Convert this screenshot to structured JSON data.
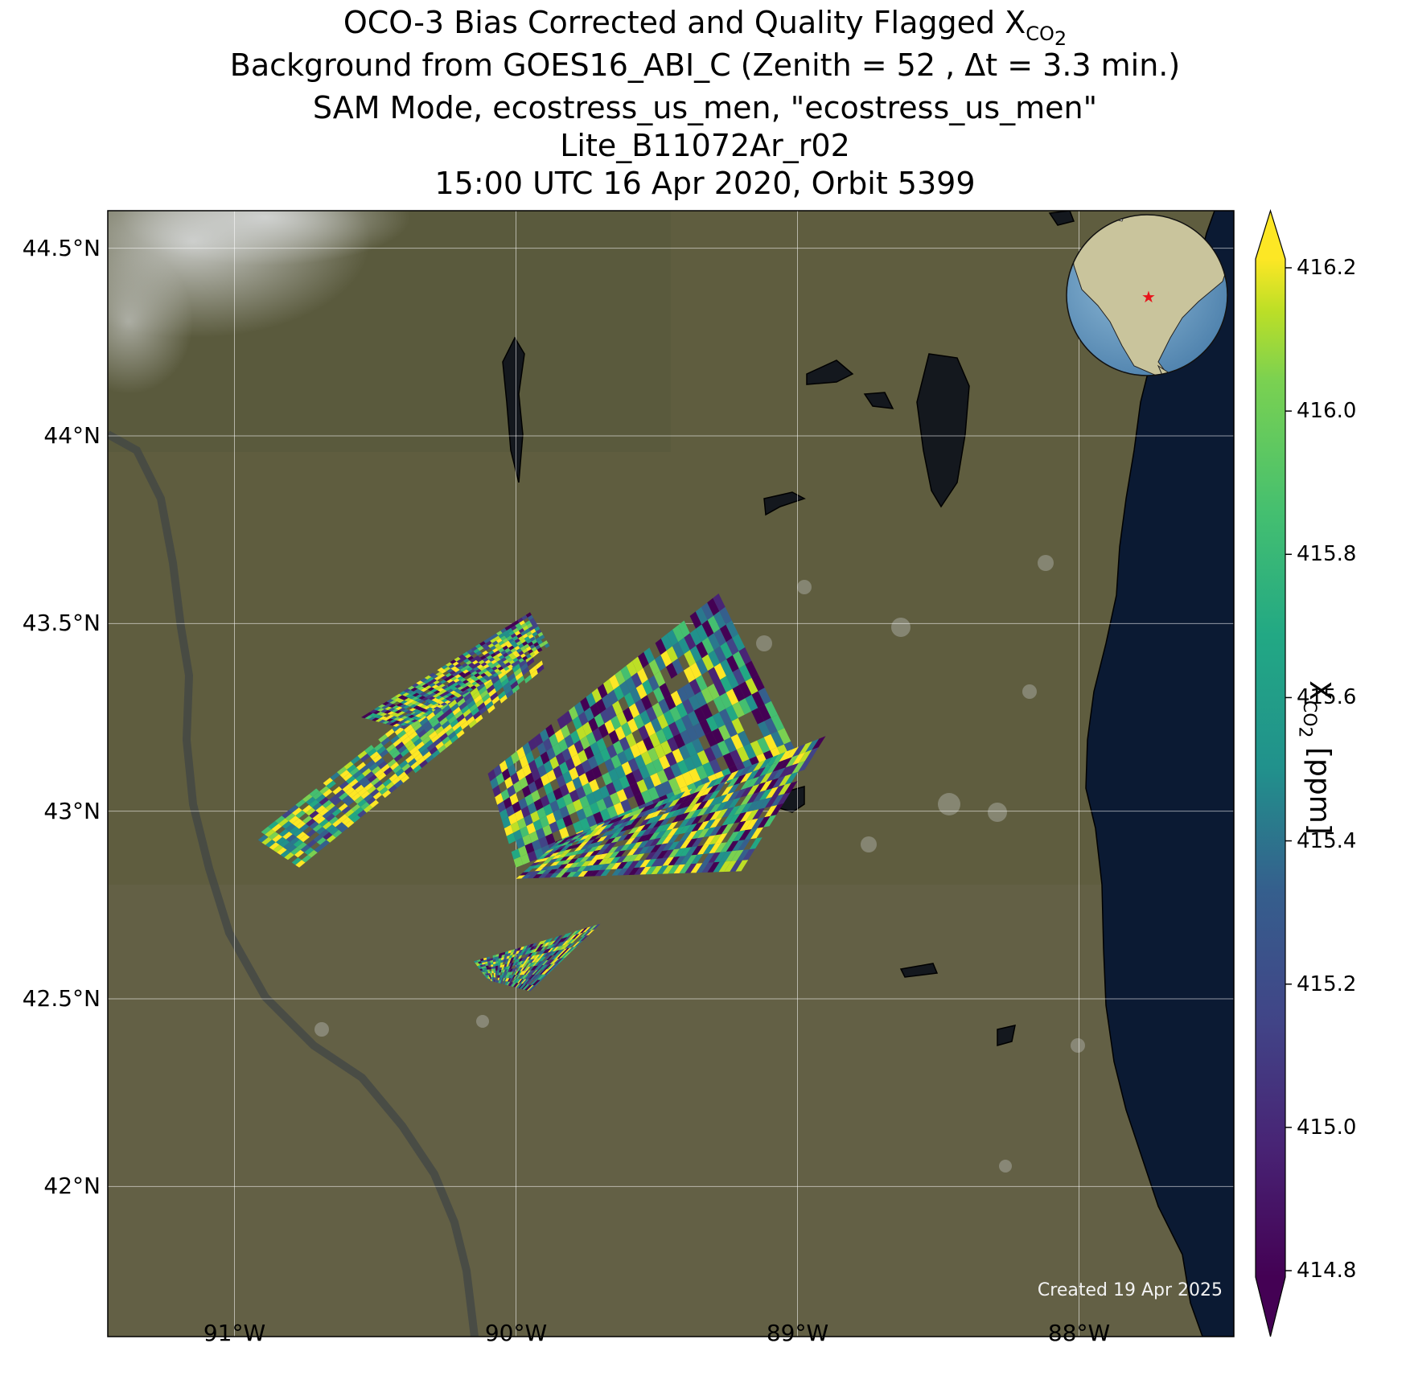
{
  "title": {
    "line1_text": "OCO-3 Bias Corrected and Quality Flagged X",
    "line1_sub": "CO",
    "line1_sub2": "2",
    "line2": "Background from GOES16_ABI_C (Zenith = 52 , Δt =  3.3 min.)",
    "line3": "SAM Mode, ecostress_us_men, \"ecostress_us_men\"",
    "line4": "Lite_B11072Ar_r02",
    "line5": "15:00 UTC 16 Apr 2020, Orbit 5399"
  },
  "map": {
    "lon_range": [
      -91.45,
      -87.45
    ],
    "lat_range": [
      41.6,
      44.6
    ],
    "lat_ticks": [
      {
        "value": 44.5,
        "label": "44.5°N"
      },
      {
        "value": 44.0,
        "label": "44°N"
      },
      {
        "value": 43.5,
        "label": "43.5°N"
      },
      {
        "value": 43.0,
        "label": "43°N"
      },
      {
        "value": 42.5,
        "label": "42.5°N"
      },
      {
        "value": 42.0,
        "label": "42°N"
      }
    ],
    "lon_ticks": [
      {
        "value": -91.0,
        "label": "91°W"
      },
      {
        "value": -90.0,
        "label": "90°W"
      },
      {
        "value": -89.0,
        "label": "89°W"
      },
      {
        "value": -88.0,
        "label": "88°W"
      }
    ],
    "grid": true,
    "background": "satellite imagery",
    "land_color": "#5f5d3f",
    "water_color": "#0b1a33",
    "created_label": "Created 19 Apr 2025",
    "inset_globe": {
      "placement": "top-right",
      "marker": "red star",
      "marker_color": "#e8141b"
    }
  },
  "chart_data": {
    "type": "heatmap",
    "colorbar": {
      "label_main": "X",
      "label_sub": "CO",
      "label_sub2": "2",
      "label_unit": " [ppm]",
      "min": 414.8,
      "max": 416.2,
      "extend": "both",
      "colormap": "viridis",
      "ticks": [
        "416.2",
        "416.0",
        "415.8",
        "415.6",
        "415.4",
        "415.2",
        "415.0",
        "414.8"
      ]
    },
    "swaths": [
      {
        "corners": [
          [
            -90.93,
            42.93
          ],
          [
            -89.95,
            43.51
          ],
          [
            -89.9,
            43.38
          ],
          [
            -90.77,
            42.85
          ]
        ]
      },
      {
        "corners": [
          [
            -90.55,
            43.25
          ],
          [
            -89.95,
            43.53
          ],
          [
            -89.88,
            43.44
          ],
          [
            -90.4,
            43.22
          ]
        ]
      },
      {
        "corners": [
          [
            -90.1,
            43.1
          ],
          [
            -89.28,
            43.58
          ],
          [
            -89.0,
            43.15
          ],
          [
            -90.0,
            42.85
          ]
        ]
      },
      {
        "corners": [
          [
            -89.85,
            42.92
          ],
          [
            -88.9,
            43.2
          ],
          [
            -89.2,
            42.84
          ],
          [
            -90.0,
            42.82
          ]
        ]
      },
      {
        "corners": [
          [
            -90.15,
            42.6
          ],
          [
            -89.7,
            42.7
          ],
          [
            -89.95,
            42.52
          ],
          [
            -90.1,
            42.55
          ]
        ]
      }
    ]
  }
}
